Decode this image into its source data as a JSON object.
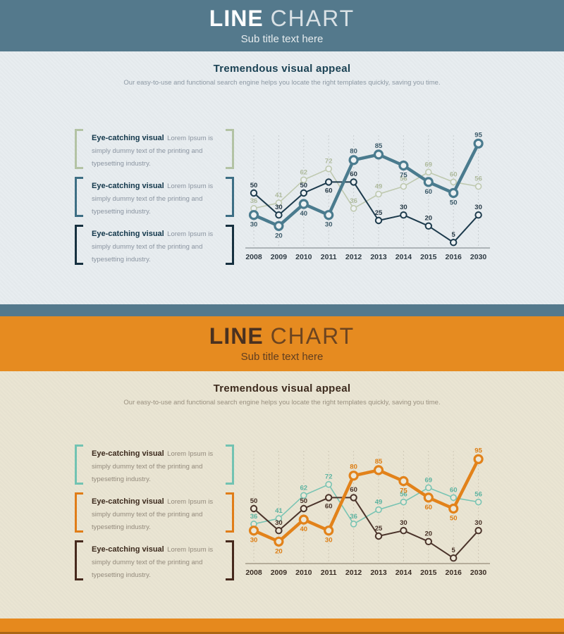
{
  "panels": [
    {
      "name": "blue-theme",
      "header": {
        "title_strong": "LINE",
        "title_light": "CHART",
        "subtitle": "Sub title text here"
      },
      "section": {
        "heading": "Tremendous visual appeal",
        "description": "Our easy-to-use and functional search engine helps you locate the right templates quickly, saving you time."
      },
      "callouts": [
        {
          "title": "Eye-catching visual",
          "body": "Lorem Ipsum is simply dummy text of the printing and typesetting industry.",
          "accent": "#b3c3a4"
        },
        {
          "title": "Eye-catching visual",
          "body": "Lorem Ipsum is simply dummy text of the printing and typesetting industry.",
          "accent": "#3d6e84"
        },
        {
          "title": "Eye-catching visual",
          "body": "Lorem Ipsum is simply dummy text of the printing and typesetting industry.",
          "accent": "#16303f"
        }
      ],
      "colors": {
        "header_bg": "#54798c",
        "header_fg": "#ffffff",
        "body_bg": "#e8edf0",
        "heading_fg": "#1b4254",
        "desc_fg": "#8c98a3",
        "callout_title_fg": "#11364a",
        "callout_body_fg": "#8a94a0"
      }
    },
    {
      "name": "orange-theme",
      "header": {
        "title_strong": "LINE",
        "title_light": "CHART",
        "subtitle": "Sub title text here"
      },
      "section": {
        "heading": "Tremendous visual appeal",
        "description": "Our easy-to-use and functional search engine helps you locate the right templates quickly, saving you time."
      },
      "callouts": [
        {
          "title": "Eye-catching visual",
          "body": "Lorem Ipsum is simply dummy text of the printing and typesetting industry.",
          "accent": "#72c3b2"
        },
        {
          "title": "Eye-catching visual",
          "body": "Lorem Ipsum is simply dummy text of the printing and typesetting industry.",
          "accent": "#e07d18"
        },
        {
          "title": "Eye-catching visual",
          "body": "Lorem Ipsum is simply dummy text of the printing and typesetting industry.",
          "accent": "#46291d"
        }
      ],
      "colors": {
        "header_bg": "#e68b20",
        "header_fg": "#4a3120",
        "body_bg": "#eae5d3",
        "heading_fg": "#3c2a1d",
        "desc_fg": "#99907f",
        "callout_title_fg": "#3c2a1d",
        "callout_body_fg": "#938a7c"
      }
    }
  ],
  "divider_color": "#54798c",
  "footer_color": "#e6891d",
  "chart_data": [
    {
      "type": "line",
      "title": "",
      "categories": [
        "2008",
        "2009",
        "2010",
        "2011",
        "2012",
        "2013",
        "2014",
        "2015",
        "2016",
        "2030"
      ],
      "series": [
        {
          "name": "sage-line",
          "values": [
            36,
            41,
            62,
            72,
            36,
            49,
            56,
            69,
            60,
            56
          ],
          "color": "#bfc9b0",
          "label_color": "#aeba9d",
          "weight": "light"
        },
        {
          "name": "navy-line",
          "values": [
            50,
            30,
            50,
            60,
            60,
            25,
            30,
            20,
            5,
            30
          ],
          "color": "#1c3a4c",
          "label_color": "#253845",
          "weight": "thin"
        },
        {
          "name": "teal-line",
          "values": [
            30,
            20,
            40,
            30,
            80,
            85,
            75,
            60,
            50,
            95
          ],
          "color": "#4a7b8e",
          "label_color": "#3c5a69",
          "weight": "thick"
        }
      ],
      "ylim": [
        0,
        100
      ],
      "xlabel": "",
      "ylabel": "",
      "grid": "vertical-dashed",
      "legend": "none",
      "grid_color": "#c8cdd0",
      "axis_color": "#9aa1a5",
      "tick_color": "#2f3b44",
      "marker_fill": "#edf1f3"
    },
    {
      "type": "line",
      "title": "",
      "categories": [
        "2008",
        "2009",
        "2010",
        "2011",
        "2012",
        "2013",
        "2014",
        "2015",
        "2016",
        "2030"
      ],
      "series": [
        {
          "name": "aqua-line",
          "values": [
            36,
            41,
            62,
            72,
            36,
            49,
            56,
            69,
            60,
            56
          ],
          "color": "#79c4b3",
          "label_color": "#5cb3a0",
          "weight": "light"
        },
        {
          "name": "brown-line",
          "values": [
            50,
            30,
            50,
            60,
            60,
            25,
            30,
            20,
            5,
            30
          ],
          "color": "#4a332a",
          "label_color": "#463026",
          "weight": "thin"
        },
        {
          "name": "orange-line",
          "values": [
            30,
            20,
            40,
            30,
            80,
            85,
            75,
            60,
            50,
            95
          ],
          "color": "#e2821a",
          "label_color": "#dd7d12",
          "weight": "thick"
        }
      ],
      "ylim": [
        0,
        100
      ],
      "xlabel": "",
      "ylabel": "",
      "grid": "vertical-dashed",
      "legend": "none",
      "grid_color": "#cfc8b6",
      "axis_color": "#a39a88",
      "tick_color": "#3a2d24",
      "marker_fill": "#ece7d7"
    }
  ]
}
